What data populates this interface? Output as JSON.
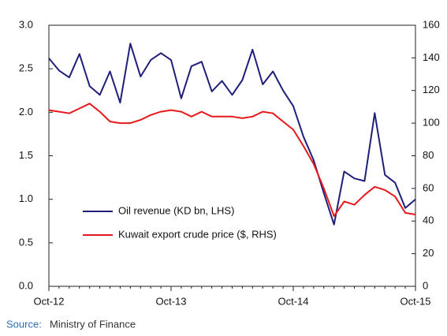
{
  "chart_data": {
    "type": "line",
    "categories": [
      "Oct-12",
      null,
      null,
      null,
      null,
      null,
      null,
      null,
      null,
      null,
      null,
      null,
      "Oct-13",
      null,
      null,
      null,
      null,
      null,
      null,
      null,
      null,
      null,
      null,
      null,
      "Oct-14",
      null,
      null,
      null,
      null,
      null,
      null,
      null,
      null,
      null,
      null,
      null,
      "Oct-15"
    ],
    "series": [
      {
        "name": "Oil revenue (KD bn, LHS)",
        "color": "#1f1f7a",
        "axis": "y",
        "values": [
          2.62,
          2.48,
          2.4,
          2.67,
          2.3,
          2.2,
          2.47,
          2.11,
          2.79,
          2.41,
          2.6,
          2.68,
          2.6,
          2.16,
          2.53,
          2.58,
          2.24,
          2.36,
          2.2,
          2.37,
          2.72,
          2.32,
          2.47,
          2.25,
          2.07,
          1.72,
          1.45,
          1.07,
          0.71,
          1.32,
          1.24,
          1.21,
          1.99,
          1.28,
          1.19,
          0.9,
          1.0
        ]
      },
      {
        "name": "Kuwait export crude price ($, RHS)",
        "color": "#e8191c",
        "axis": "y2",
        "values": [
          108,
          107,
          106,
          109,
          112,
          107,
          101,
          100,
          100,
          102,
          105,
          107,
          108,
          107,
          104,
          107,
          104,
          104,
          104,
          103,
          104,
          107,
          106,
          101,
          96,
          86,
          75,
          60,
          43,
          52,
          50,
          56,
          61,
          59,
          55,
          45,
          44
        ]
      }
    ],
    "ylim": [
      0,
      3
    ],
    "yticks": [
      {
        "value": 0,
        "label": "0.0"
      },
      0.5,
      {
        "value": 1,
        "label": "1.0"
      },
      1.5,
      {
        "value": 2,
        "label": "2.0"
      },
      2.5,
      {
        "value": 3,
        "label": "3.0"
      }
    ],
    "y2lim": [
      0,
      160
    ],
    "y2ticks": [
      0,
      20,
      40,
      60,
      80,
      100,
      120,
      140,
      160
    ],
    "source_label": "Source:",
    "source": "Ministry of Finance"
  }
}
